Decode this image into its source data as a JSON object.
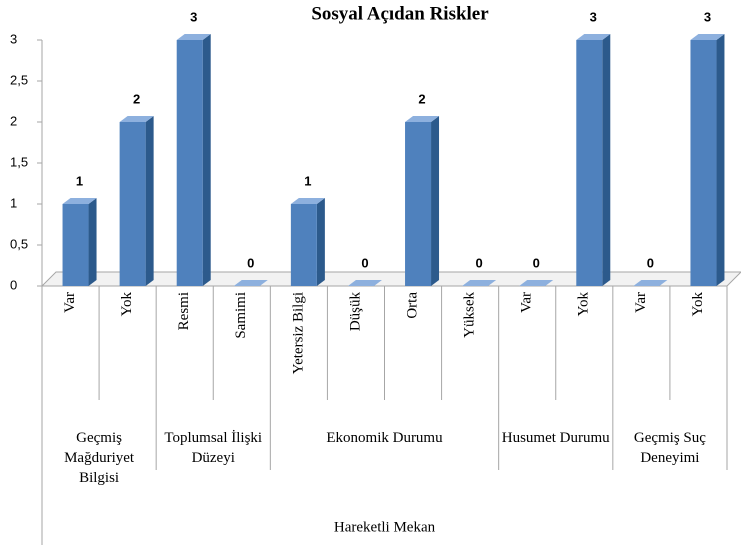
{
  "chart_data": {
    "type": "bar3d",
    "title": "Sosyal Açıdan Riskler",
    "groups": [
      {
        "name": "Geçmiş Mağduriyet Bilgisi",
        "categories": [
          "Var",
          "Yok"
        ],
        "values": [
          1,
          2
        ]
      },
      {
        "name": "Toplumsal İlişki Düzeyi",
        "categories": [
          "Resmi",
          "Samimi"
        ],
        "values": [
          3,
          0
        ]
      },
      {
        "name": "Ekonomik Durumu",
        "categories": [
          "Yetersiz Bilgi",
          "Düşük",
          "Orta",
          "Yüksek"
        ],
        "values": [
          1,
          0,
          2,
          0
        ]
      },
      {
        "name": "Husumet Durumu",
        "categories": [
          "Var",
          "Yok"
        ],
        "values": [
          0,
          3
        ]
      },
      {
        "name": "Geçmiş Suç Deneyimi",
        "categories": [
          "Var",
          "Yok"
        ],
        "values": [
          0,
          3
        ]
      }
    ],
    "super_group": "Hareketli Mekan",
    "color": "#4f81bd",
    "ylim": [
      0,
      3
    ],
    "yticks": [
      0,
      {
        "value": 0.5,
        "label": "0,5"
      },
      1,
      {
        "value": 1.5,
        "label": "1,5"
      },
      2,
      {
        "value": 2.5,
        "label": "2,5"
      },
      3
    ]
  }
}
